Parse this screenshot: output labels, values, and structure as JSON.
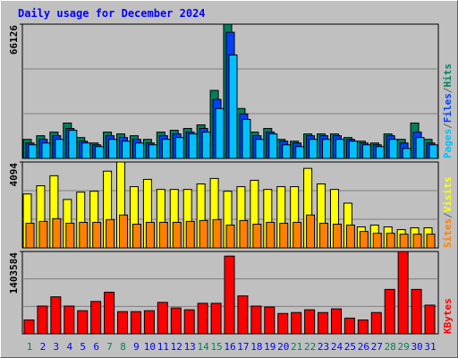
{
  "chart_data": [
    {
      "type": "bar",
      "title": "Daily usage for December 2024",
      "categories": [
        "1",
        "2",
        "3",
        "4",
        "5",
        "6",
        "7",
        "8",
        "9",
        "10",
        "11",
        "12",
        "13",
        "14",
        "15",
        "16",
        "17",
        "18",
        "19",
        "20",
        "21",
        "22",
        "23",
        "24",
        "25",
        "26",
        "27",
        "28",
        "29",
        "30",
        "31"
      ],
      "category_colors": [
        "#00805c",
        "#0000ff",
        "#0000ff",
        "#0000ff",
        "#0000ff",
        "#0000ff",
        "#00805c",
        "#00805c",
        "#0000ff",
        "#0000ff",
        "#0000ff",
        "#0000ff",
        "#0000ff",
        "#00805c",
        "#00805c",
        "#0000ff",
        "#0000ff",
        "#0000ff",
        "#0000ff",
        "#0000ff",
        "#00805c",
        "#00805c",
        "#0000ff",
        "#0000ff",
        "#0000ff",
        "#0000ff",
        "#0000ff",
        "#00805c",
        "#00805c",
        "#0000ff",
        "#0000ff"
      ],
      "legend_separator": "/",
      "ylim": [
        0,
        66126
      ],
      "yticks": [
        66126
      ],
      "series": [
        {
          "name": "Hits",
          "color": "#00805c",
          "values": [
            9383,
            11170,
            12957,
            17425,
            10276,
            7595,
            12957,
            12063,
            11170,
            9383,
            12957,
            13850,
            14744,
            16531,
            33510,
            66126,
            24574,
            12957,
            14744,
            9383,
            8489,
            12063,
            12063,
            12063,
            10276,
            8489,
            7595,
            12063,
            9383,
            17425,
            9383
          ]
        },
        {
          "name": "Files",
          "color": "#0040ff",
          "values": [
            7599,
            9387,
            11175,
            14751,
            8493,
            6705,
            11175,
            10281,
            9387,
            7599,
            11175,
            12069,
            12963,
            14751,
            29055,
            62133,
            21903,
            11175,
            12963,
            8493,
            7599,
            11175,
            11175,
            11175,
            9387,
            7599,
            6705,
            11175,
            7599,
            12963,
            7599
          ]
        },
        {
          "name": "Pages",
          "color": "#00c0ff",
          "values": [
            6705,
            7599,
            9387,
            13857,
            7599,
            5811,
            9387,
            8493,
            7599,
            6705,
            9387,
            10281,
            12069,
            12963,
            24585,
            50958,
            19221,
            9387,
            12069,
            6705,
            5811,
            9387,
            9387,
            9387,
            8493,
            6705,
            5811,
            9387,
            4917,
            10281,
            6705
          ]
        }
      ]
    },
    {
      "type": "bar",
      "ylim": [
        0,
        4094
      ],
      "yticks": [
        4094
      ],
      "series": [
        {
          "name": "Visits",
          "color": "#ffff00",
          "values": [
            2569,
            2961,
            3440,
            2308,
            2657,
            2700,
            3658,
            4094,
            2918,
            3266,
            2787,
            2787,
            2787,
            3049,
            3310,
            2700,
            2918,
            3223,
            2787,
            2918,
            2918,
            3789,
            3049,
            2787,
            2134,
            1002,
            1089,
            1002,
            871,
            958,
            958
          ]
        },
        {
          "name": "Sites",
          "color": "#ff8000",
          "values": [
            1176,
            1263,
            1394,
            1176,
            1219,
            1219,
            1350,
            1568,
            1132,
            1219,
            1219,
            1219,
            1263,
            1307,
            1350,
            1089,
            1307,
            1132,
            1219,
            1176,
            1219,
            1568,
            1176,
            1132,
            1089,
            784,
            697,
            697,
            653,
            653,
            653
          ]
        }
      ]
    },
    {
      "type": "bar",
      "ylim": [
        0,
        1403584
      ],
      "yticks": [
        1403584
      ],
      "series": [
        {
          "name": "KBytes",
          "color": "#ff0000",
          "values": [
            236565,
            473130,
            630840,
            473130,
            394275,
            551985,
            709695,
            378504,
            378504,
            394275,
            536214,
            441588,
            410046,
            520443,
            520443,
            1324764,
            646611,
            473130,
            457359,
            346962,
            362733,
            410046,
            362733,
            425817,
            268107,
            236565,
            362733,
            757008,
            1403584,
            757008,
            488901
          ]
        }
      ]
    }
  ]
}
